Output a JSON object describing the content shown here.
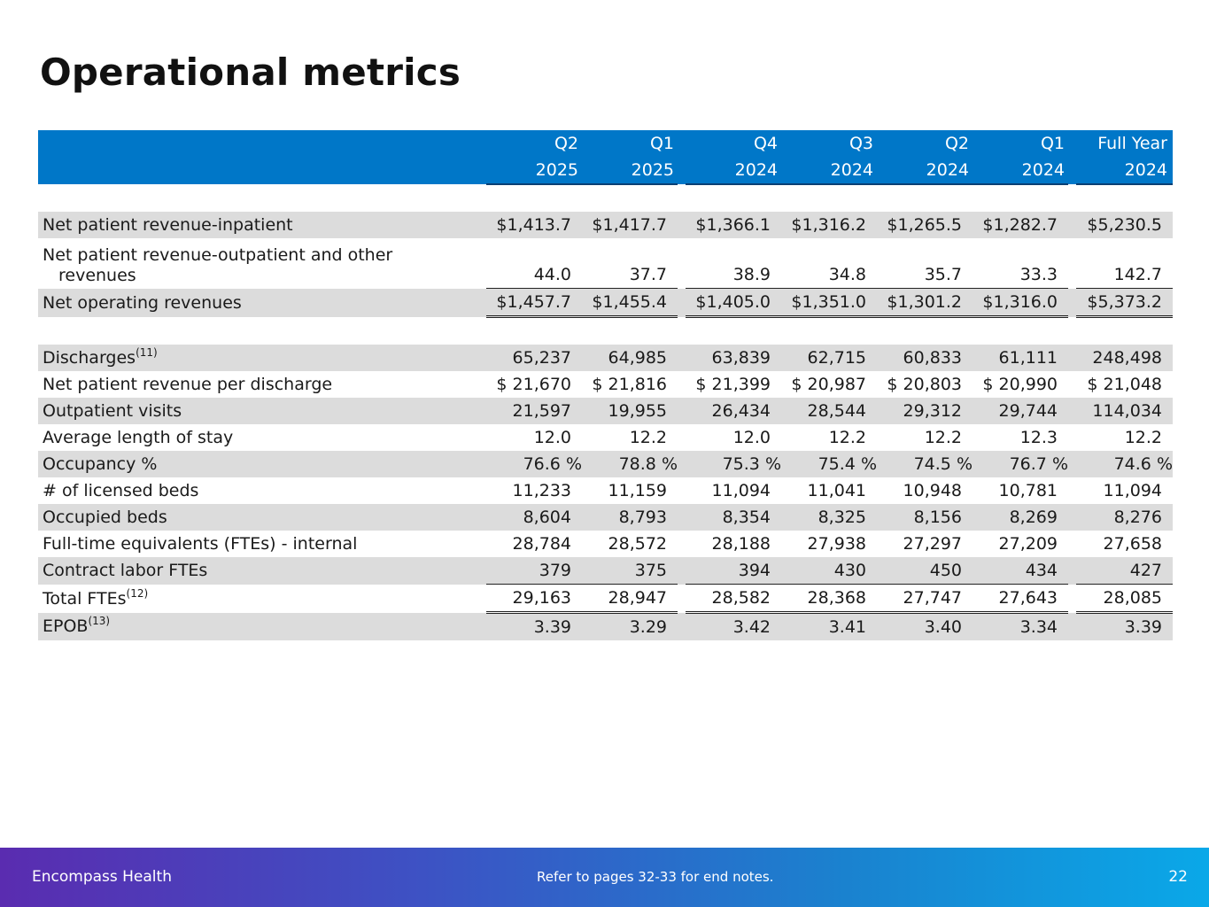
{
  "page": {
    "title": "Operational metrics"
  },
  "table": {
    "columns": [
      {
        "quarter": "Q2",
        "year": "2025"
      },
      {
        "quarter": "Q1",
        "year": "2025"
      },
      {
        "quarter": "Q4",
        "year": "2024"
      },
      {
        "quarter": "Q3",
        "year": "2024"
      },
      {
        "quarter": "Q2",
        "year": "2024"
      },
      {
        "quarter": "Q1",
        "year": "2024"
      },
      {
        "quarter": "Full Year",
        "year": "2024"
      }
    ],
    "rows": [
      {
        "label": "Net patient revenue-inpatient",
        "values": [
          "$1,413.7",
          "$1,417.7",
          "$1,366.1",
          "$1,316.2",
          "$1,265.5",
          "$1,282.7",
          "$5,230.5"
        ]
      },
      {
        "label_line1": "Net patient revenue-outpatient and other",
        "label_line2": "revenues",
        "values": [
          "44.0",
          "37.7",
          "38.9",
          "34.8",
          "35.7",
          "33.3",
          "142.7"
        ]
      },
      {
        "label": "Net operating revenues",
        "values": [
          "$1,457.7",
          "$1,455.4",
          "$1,405.0",
          "$1,351.0",
          "$1,301.2",
          "$1,316.0",
          "$5,373.2"
        ]
      },
      {
        "label": "Discharges",
        "note": "(11)",
        "values": [
          "65,237",
          "64,985",
          "63,839",
          "62,715",
          "60,833",
          "61,111",
          "248,498"
        ]
      },
      {
        "label": "Net patient revenue per discharge",
        "values": [
          "$ 21,670",
          "$ 21,816",
          "$ 21,399",
          "$ 20,987",
          "$ 20,803",
          "$ 20,990",
          "$ 21,048"
        ]
      },
      {
        "label": "Outpatient visits",
        "values": [
          "21,597",
          "19,955",
          "26,434",
          "28,544",
          "29,312",
          "29,744",
          "114,034"
        ]
      },
      {
        "label": "Average length of stay",
        "values": [
          "12.0",
          "12.2",
          "12.0",
          "12.2",
          "12.2",
          "12.3",
          "12.2"
        ]
      },
      {
        "label": "Occupancy %",
        "values": [
          "76.6 %",
          "78.8 %",
          "75.3 %",
          "75.4 %",
          "74.5 %",
          "76.7 %",
          "74.6 %"
        ]
      },
      {
        "label": "# of licensed beds",
        "values": [
          "11,233",
          "11,159",
          "11,094",
          "11,041",
          "10,948",
          "10,781",
          "11,094"
        ]
      },
      {
        "label": "Occupied beds",
        "values": [
          "8,604",
          "8,793",
          "8,354",
          "8,325",
          "8,156",
          "8,269",
          "8,276"
        ]
      },
      {
        "label": "Full-time equivalents (FTEs) - internal",
        "values": [
          "28,784",
          "28,572",
          "28,188",
          "27,938",
          "27,297",
          "27,209",
          "27,658"
        ]
      },
      {
        "label": "Contract labor FTEs",
        "values": [
          "379",
          "375",
          "394",
          "430",
          "450",
          "434",
          "427"
        ]
      },
      {
        "label": "Total FTEs",
        "note": "(12)",
        "values": [
          "29,163",
          "28,947",
          "28,582",
          "28,368",
          "27,747",
          "27,643",
          "28,085"
        ]
      },
      {
        "label": "EPOB",
        "note": "(13)",
        "values": [
          "3.39",
          "3.29",
          "3.42",
          "3.41",
          "3.40",
          "3.34",
          "3.39"
        ]
      }
    ]
  },
  "footer": {
    "brand": "Encompass Health",
    "note": "Refer to pages 32-33 for end notes.",
    "page_number": "22"
  },
  "colors": {
    "header_blue": "#0077c8",
    "row_shade": "#dcdcdc",
    "footer_gradient_start": "#5a2cb0",
    "footer_gradient_end": "#0aa8e8"
  }
}
